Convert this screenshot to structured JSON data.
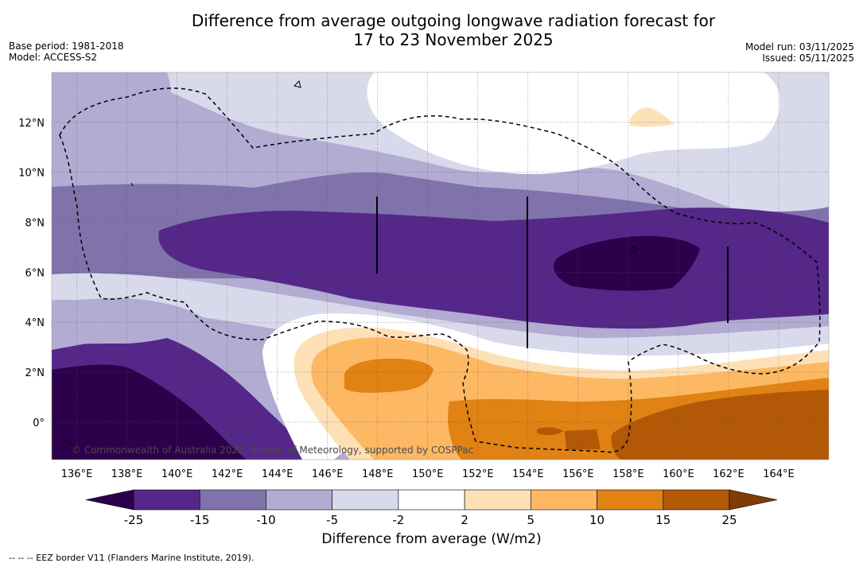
{
  "title": {
    "line1": "Difference from average outgoing longwave radiation forecast for",
    "line2": "17 to 23 November 2025"
  },
  "meta_left": {
    "base_period": "Base period: 1981-2018",
    "model": "Model: ACCESS-S2"
  },
  "meta_right": {
    "model_run": "Model run: 03/11/2025",
    "issued": "Issued: 05/11/2025"
  },
  "map": {
    "lat_labels": [
      "12°N",
      "10°N",
      "8°N",
      "6°N",
      "4°N",
      "2°N",
      "0°"
    ],
    "lat_values": [
      12,
      10,
      8,
      6,
      4,
      2,
      0
    ],
    "lon_labels": [
      "136°E",
      "138°E",
      "140°E",
      "142°E",
      "144°E",
      "146°E",
      "148°E",
      "150°E",
      "152°E",
      "154°E",
      "156°E",
      "158°E",
      "160°E",
      "162°E",
      "164°E"
    ],
    "lon_values": [
      136,
      138,
      140,
      142,
      144,
      146,
      148,
      150,
      152,
      154,
      156,
      158,
      160,
      162,
      164
    ],
    "lon_range": [
      135,
      166
    ],
    "lat_range": [
      -1.5,
      14
    ],
    "watermark": "© Commonwealth of Australia 2025, Bureau of Meteorology, supported by COSPPac"
  },
  "colorbar": {
    "title": "Difference from average (W/m2)",
    "tick_labels": [
      "-25",
      "-15",
      "-10",
      "-5",
      "-2",
      "2",
      "5",
      "10",
      "15",
      "25"
    ],
    "colors": [
      "#2d004b",
      "#542788",
      "#8073ac",
      "#b2abd2",
      "#d8daeb",
      "#ffffff",
      "#fee0b6",
      "#fdb863",
      "#e08214",
      "#b35806",
      "#7f3b08"
    ]
  },
  "footer": {
    "legend_text": "--  --  -- EEZ border V11 (Flanders Marine Institute, 2019)."
  }
}
